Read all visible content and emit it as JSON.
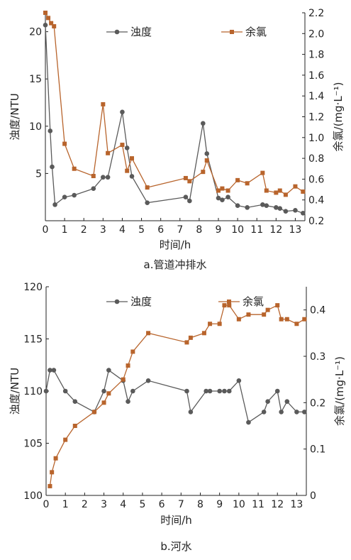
{
  "colors": {
    "turbidity": "#5a5a5a",
    "chlorine": "#b8642c",
    "axis": "#222222"
  },
  "chart_data": [
    {
      "type": "line",
      "caption": "a.管道冲排水",
      "xlabel": "时间/h",
      "ylabel_left": "浊度/NTU",
      "ylabel_right": "余氯/(mg·L⁻¹)",
      "xlim": [
        0,
        13.5
      ],
      "ylim_left": [
        0,
        22
      ],
      "ylim_right": [
        0.2,
        2.2
      ],
      "xticks": [
        0,
        1,
        2,
        3,
        4,
        5,
        6,
        7,
        8,
        9,
        10,
        11,
        12,
        13
      ],
      "yticks_left": [
        5,
        10,
        15,
        20
      ],
      "yticks_right": [
        0.2,
        0.4,
        0.6,
        0.8,
        1.0,
        1.2,
        1.4,
        1.6,
        1.8,
        2.0,
        2.2
      ],
      "yticklabels_right": [
        "0.2",
        "0.4",
        "0.6",
        "0.8",
        "1.0",
        "1.2",
        "1.4",
        "1.6",
        "1.8",
        "2.0",
        "2.2"
      ],
      "legend_position": "top-center",
      "series": [
        {
          "name": "浊度",
          "axis": "left",
          "marker": "circle",
          "x": [
            0,
            0.25,
            0.35,
            0.5,
            1,
            1.5,
            2.5,
            3,
            3.25,
            4,
            4.25,
            4.5,
            5.3,
            7.3,
            7.5,
            8.2,
            8.4,
            9,
            9.2,
            9.5,
            10,
            10.5,
            11.3,
            11.5,
            12,
            12.2,
            12.5,
            13,
            13.4
          ],
          "y": [
            20.7,
            9.5,
            5.7,
            1.7,
            2.5,
            2.7,
            3.4,
            4.6,
            4.6,
            11.5,
            7.7,
            4.7,
            1.9,
            2.5,
            2.1,
            10.3,
            7.1,
            2.4,
            2.2,
            2.5,
            1.6,
            1.4,
            1.7,
            1.6,
            1.4,
            1.3,
            1.0,
            1.1,
            0.8
          ]
        },
        {
          "name": "余氯",
          "axis": "right",
          "marker": "square",
          "x": [
            0,
            0.15,
            0.3,
            0.45,
            1,
            1.5,
            2.5,
            3,
            3.25,
            4,
            4.25,
            4.5,
            5.3,
            7.3,
            7.5,
            8.2,
            8.4,
            9,
            9.2,
            9.5,
            10,
            10.5,
            11.3,
            11.5,
            12,
            12.2,
            12.5,
            13,
            13.4
          ],
          "y": [
            2.2,
            2.15,
            2.1,
            2.07,
            0.94,
            0.7,
            0.63,
            1.32,
            0.85,
            0.93,
            0.68,
            0.8,
            0.52,
            0.61,
            0.58,
            0.67,
            0.78,
            0.49,
            0.51,
            0.49,
            0.59,
            0.56,
            0.66,
            0.49,
            0.47,
            0.49,
            0.45,
            0.53,
            0.48
          ]
        }
      ]
    },
    {
      "type": "line",
      "caption": "b.河水",
      "xlabel": "时间/h",
      "ylabel_left": "浊度/NTU",
      "ylabel_right": "余氯/(mg·L⁻¹)",
      "xlim": [
        0,
        13.5
      ],
      "ylim_left": [
        100,
        120
      ],
      "ylim_right": [
        0,
        0.45
      ],
      "xticks": [
        0,
        1,
        2,
        3,
        4,
        5,
        6,
        7,
        8,
        9,
        10,
        11,
        12,
        13
      ],
      "yticks_left": [
        100,
        105,
        110,
        115,
        120
      ],
      "yticks_right": [
        0,
        0.1,
        0.2,
        0.3,
        0.4
      ],
      "yticklabels_right": [
        "0",
        "0.1",
        "0.2",
        "0.3",
        "0.4"
      ],
      "legend_position": "top-center",
      "series": [
        {
          "name": "浊度",
          "axis": "left",
          "marker": "circle",
          "x": [
            0,
            0.2,
            0.4,
            1,
            1.5,
            2.5,
            3,
            3.25,
            4,
            4.25,
            4.5,
            5.3,
            7.3,
            7.5,
            8.3,
            8.5,
            9,
            9.25,
            9.5,
            10,
            10.5,
            11.3,
            11.5,
            12,
            12.2,
            12.5,
            13,
            13.4
          ],
          "y": [
            110,
            112,
            112,
            110,
            109,
            108,
            110,
            112,
            111,
            109,
            110,
            111,
            110,
            108,
            110,
            110,
            110,
            110,
            110,
            111,
            107,
            108,
            109,
            110,
            108,
            109,
            108,
            108
          ]
        },
        {
          "name": "余氯",
          "axis": "right",
          "marker": "square",
          "x": [
            0.2,
            0.3,
            0.5,
            1,
            1.5,
            2.5,
            3,
            3.25,
            4,
            4.25,
            4.5,
            5.3,
            7.3,
            7.5,
            8.2,
            8.5,
            9,
            9.25,
            9.5,
            10,
            10.5,
            11.3,
            11.5,
            12,
            12.2,
            12.5,
            13,
            13.4
          ],
          "y": [
            0.02,
            0.05,
            0.08,
            0.12,
            0.15,
            0.18,
            0.2,
            0.22,
            0.25,
            0.28,
            0.31,
            0.35,
            0.33,
            0.34,
            0.35,
            0.37,
            0.37,
            0.41,
            0.41,
            0.38,
            0.39,
            0.39,
            0.4,
            0.41,
            0.38,
            0.38,
            0.37,
            0.38
          ]
        }
      ]
    }
  ]
}
